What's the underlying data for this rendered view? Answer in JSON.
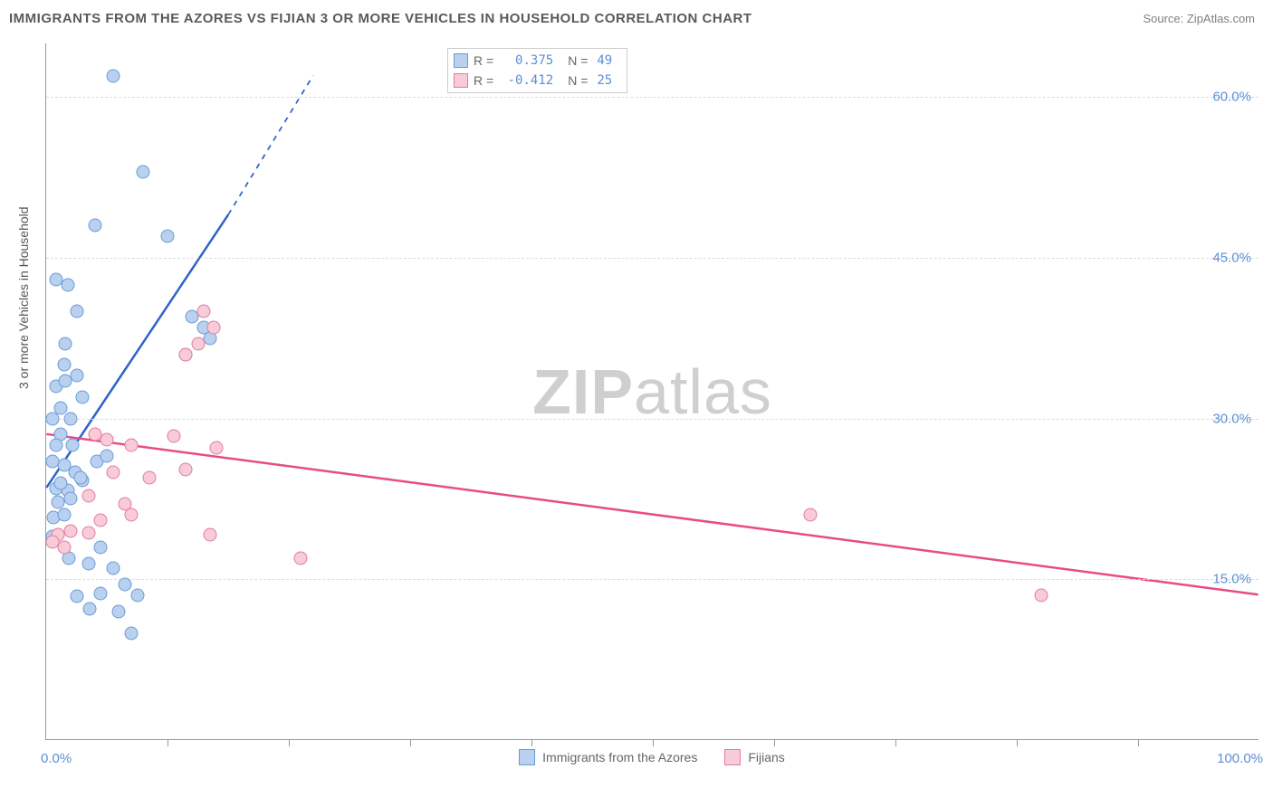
{
  "title": "IMMIGRANTS FROM THE AZORES VS FIJIAN 3 OR MORE VEHICLES IN HOUSEHOLD CORRELATION CHART",
  "source": "Source: ZipAtlas.com",
  "watermark": {
    "bold": "ZIP",
    "rest": "atlas"
  },
  "chart": {
    "type": "scatter",
    "xlim": [
      0,
      100
    ],
    "ylim": [
      0,
      65
    ],
    "x_ticks_major": [
      0,
      100
    ],
    "x_ticks_minor": [
      10,
      20,
      30,
      40,
      50,
      60,
      70,
      80,
      90
    ],
    "x_tick_labels": [
      "0.0%",
      "100.0%"
    ],
    "y_grid": [
      15,
      30,
      45,
      60
    ],
    "y_tick_labels": [
      "15.0%",
      "30.0%",
      "45.0%",
      "60.0%"
    ],
    "y_axis_title": "3 or more Vehicles in Household",
    "background_color": "#ffffff",
    "grid_color": "#dcdcdc",
    "axis_color": "#999999",
    "text_color": "#5a5a5a",
    "tick_label_color": "#5b8fd6"
  },
  "series": [
    {
      "name": "Immigrants from the Azores",
      "marker_fill": "#b9d0ef",
      "marker_stroke": "#6a9bd8",
      "marker_size": 15,
      "line_color": "#2e64c8",
      "line_width": 2.5,
      "trend": {
        "x1": 0,
        "y1": 23.5,
        "x2": 15,
        "y2": 49,
        "dash_to_x": 22,
        "dash_to_y": 62
      },
      "R": "0.375",
      "N": "49",
      "points": [
        [
          5.5,
          62
        ],
        [
          8,
          53
        ],
        [
          4,
          48
        ],
        [
          0.8,
          43
        ],
        [
          1.8,
          42.5
        ],
        [
          10,
          47
        ],
        [
          2.5,
          40
        ],
        [
          1.6,
          37
        ],
        [
          12,
          39.5
        ],
        [
          13,
          38.5
        ],
        [
          13.5,
          37.5
        ],
        [
          11.5,
          36
        ],
        [
          0.8,
          33
        ],
        [
          1.6,
          33.5
        ],
        [
          2.5,
          34
        ],
        [
          0.5,
          30
        ],
        [
          1.2,
          28.5
        ],
        [
          2.2,
          27.5
        ],
        [
          1.5,
          25.7
        ],
        [
          2.4,
          25
        ],
        [
          3,
          24.2
        ],
        [
          0.8,
          23.5
        ],
        [
          1.8,
          23.3
        ],
        [
          1,
          22.2
        ],
        [
          2,
          22.5
        ],
        [
          0.6,
          20.8
        ],
        [
          1.5,
          21
        ],
        [
          0.5,
          19
        ],
        [
          2.8,
          24.5
        ],
        [
          1.9,
          17
        ],
        [
          3.5,
          16.5
        ],
        [
          4.5,
          18
        ],
        [
          6.5,
          14.5
        ],
        [
          7.5,
          13.5
        ],
        [
          4.5,
          13.7
        ],
        [
          2.5,
          13.4
        ],
        [
          3.6,
          12.2
        ],
        [
          6,
          12
        ],
        [
          7,
          10
        ],
        [
          5.5,
          16
        ],
        [
          4.2,
          26
        ],
        [
          3,
          32
        ],
        [
          1.2,
          31
        ],
        [
          2,
          30
        ],
        [
          0.5,
          26
        ],
        [
          1.2,
          24
        ],
        [
          0.8,
          27.5
        ],
        [
          5,
          26.5
        ],
        [
          1.5,
          35
        ]
      ]
    },
    {
      "name": "Fijians",
      "marker_fill": "#f7cbd7",
      "marker_stroke": "#e47b9d",
      "marker_size": 15,
      "line_color": "#e84c85",
      "line_width": 2.5,
      "trend": {
        "x1": 0,
        "y1": 28.5,
        "x2": 100,
        "y2": 13.5
      },
      "R": "-0.412",
      "N": "25",
      "points": [
        [
          13,
          40
        ],
        [
          13.8,
          38.5
        ],
        [
          12.5,
          37
        ],
        [
          11.5,
          36
        ],
        [
          5,
          28
        ],
        [
          10.5,
          28.4
        ],
        [
          7,
          27.5
        ],
        [
          14,
          27.3
        ],
        [
          5.5,
          25
        ],
        [
          8.5,
          24.5
        ],
        [
          11.5,
          25.2
        ],
        [
          3.5,
          22.8
        ],
        [
          6.5,
          22
        ],
        [
          4.5,
          20.5
        ],
        [
          7,
          21
        ],
        [
          1,
          19.2
        ],
        [
          2,
          19.5
        ],
        [
          3.5,
          19.3
        ],
        [
          13.5,
          19.2
        ],
        [
          21,
          17
        ],
        [
          1.5,
          18
        ],
        [
          0.5,
          18.5
        ],
        [
          63,
          21
        ],
        [
          82,
          13.5
        ],
        [
          4,
          28.5
        ]
      ]
    }
  ],
  "correlation_box": {
    "rows": [
      {
        "swatch_fill": "#b9d0ef",
        "swatch_stroke": "#6a9bd8",
        "r_label": "R =",
        "r_value": "0.375",
        "n_label": "N =",
        "n_value": "49"
      },
      {
        "swatch_fill": "#f7cbd7",
        "swatch_stroke": "#e47b9d",
        "r_label": "R =",
        "r_value": "-0.412",
        "n_label": "N =",
        "n_value": "25"
      }
    ]
  },
  "bottom_legend": [
    {
      "fill": "#b9d0ef",
      "stroke": "#6a9bd8",
      "label": "Immigrants from the Azores"
    },
    {
      "fill": "#f7cbd7",
      "stroke": "#e47b9d",
      "label": "Fijians"
    }
  ]
}
